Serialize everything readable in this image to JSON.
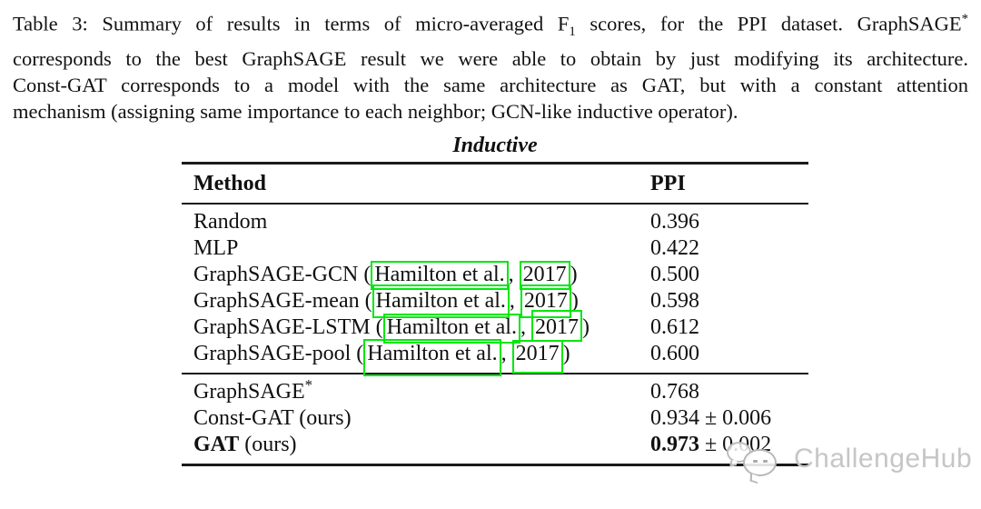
{
  "colors": {
    "annotation_green": "#00e70e",
    "rule": "#1a1a1a",
    "text": "#111111",
    "watermark": "#c6c6c6"
  },
  "caption": {
    "line1_a": "Table 3: Summary of results in terms of micro-averaged F",
    "line1_sub": "1",
    "line1_b": " scores, for the PPI dataset. GraphSAGE",
    "line1_sup": "*",
    "line2": "corresponds to the best GraphSAGE result we were able to obtain by just modifying its architecture.",
    "line3": "Const-GAT corresponds to a model with the same architecture as GAT, but with a constant attention",
    "line4": "mechanism (assigning same importance to each neighbor; GCN-like inductive operator)."
  },
  "table": {
    "title": "Inductive",
    "columns": {
      "method": "Method",
      "value": "PPI"
    },
    "rows": [
      {
        "method": "Random",
        "value": "0.396"
      },
      {
        "method": "MLP",
        "value": "0.422"
      },
      {
        "prefix": "GraphSAGE-GCN (",
        "cite_name": "Hamilton et al.",
        "sep": ", ",
        "cite_year": "2017",
        "suffix": ")",
        "value": "0.500"
      },
      {
        "prefix": "GraphSAGE-mean (",
        "cite_name": "Hamilton et al.",
        "sep": ", ",
        "cite_year": "2017",
        "suffix": ")",
        "value": "0.598"
      },
      {
        "prefix": "GraphSAGE-LSTM (",
        "cite_name": "Hamilton et al.",
        "sep": ", ",
        "cite_year": "2017",
        "suffix": ")",
        "value": "0.612"
      },
      {
        "prefix": "GraphSAGE-pool (",
        "cite_name": "Hamilton et al.",
        "sep": ", ",
        "cite_year": "2017",
        "suffix": ")",
        "value": "0.600"
      },
      {
        "method": "GraphSAGE",
        "sup": "*",
        "value": "0.768"
      },
      {
        "method": "Const-GAT (ours)",
        "value": "0.934 ± 0.006"
      },
      {
        "method_bold": "GAT",
        "method_rest": " (ours)",
        "value_bold": "0.973",
        "value_rest": " ± 0.002"
      }
    ]
  },
  "watermark": {
    "text": "ChallengeHub",
    "icon": "chat-bubbles-icon"
  }
}
